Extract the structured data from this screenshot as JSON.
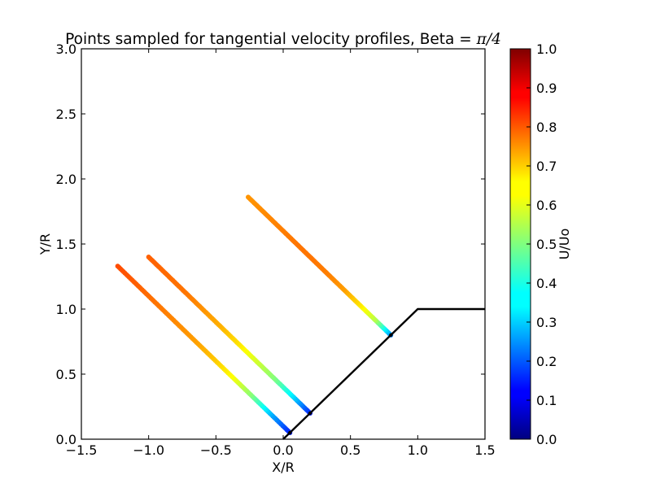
{
  "chart_data": {
    "type": "scatter",
    "title": "Points sampled for tangential velocity profiles, Beta = ",
    "title_math": "π/4",
    "xlabel": "X/R",
    "ylabel": "Y/R",
    "xlim": [
      -1.5,
      1.5
    ],
    "ylim": [
      0.0,
      3.0
    ],
    "xticks": [
      "−1.5",
      "−1.0",
      "−0.5",
      "0.0",
      "0.5",
      "1.0",
      "1.5"
    ],
    "yticks": [
      "0.0",
      "0.5",
      "1.0",
      "1.5",
      "2.0",
      "2.5",
      "3.0"
    ],
    "colorbar": {
      "label": "U/Uo",
      "range": [
        0.0,
        1.0
      ],
      "ticks": [
        "0.0",
        "0.1",
        "0.2",
        "0.3",
        "0.4",
        "0.5",
        "0.6",
        "0.7",
        "0.8",
        "0.9",
        "1.0"
      ],
      "colormap": "jet"
    },
    "boundary": [
      [
        0.0,
        0.0
      ],
      [
        1.0,
        1.0
      ],
      [
        1.5,
        1.0
      ]
    ],
    "lines": [
      {
        "start": [
          0.05,
          0.05
        ],
        "end": [
          -1.23,
          1.33
        ],
        "u": [
          0.15,
          0.3,
          0.5,
          0.62,
          0.68,
          0.72,
          0.74,
          0.76,
          0.78,
          0.8
        ]
      },
      {
        "start": [
          0.2,
          0.2
        ],
        "end": [
          -1.0,
          1.4
        ],
        "u": [
          0.15,
          0.35,
          0.5,
          0.58,
          0.65,
          0.7,
          0.73,
          0.76,
          0.77,
          0.78
        ]
      },
      {
        "start": [
          0.8,
          0.8
        ],
        "end": [
          -0.26,
          1.86
        ],
        "u": [
          0.25,
          0.55,
          0.65,
          0.72,
          0.75,
          0.76,
          0.76,
          0.75,
          0.74,
          0.73
        ]
      }
    ],
    "grid": false
  }
}
